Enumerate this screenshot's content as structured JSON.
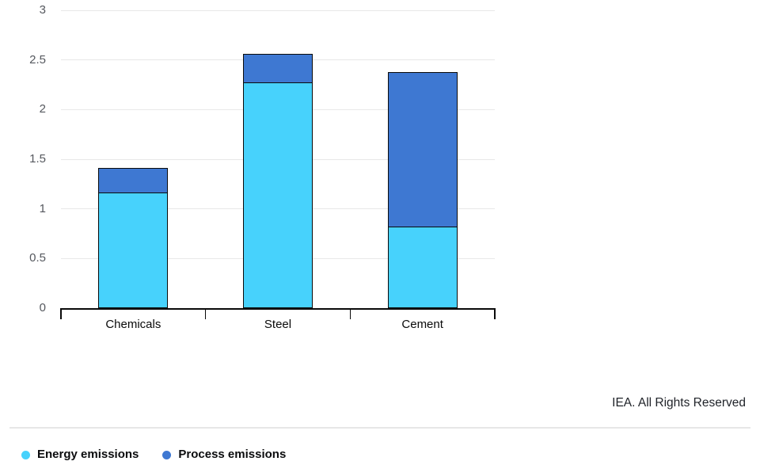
{
  "footer": {
    "credit": "IEA. All Rights Reserved"
  },
  "chart_data": {
    "type": "bar",
    "stacked": true,
    "categories": [
      "Chemicals",
      "Steel",
      "Cement"
    ],
    "series": [
      {
        "name": "Energy emissions",
        "color": "#47d2fc",
        "values": [
          1.17,
          2.28,
          0.82
        ]
      },
      {
        "name": "Process emissions",
        "color": "#3e78d2",
        "values": [
          0.24,
          0.28,
          1.56
        ]
      }
    ],
    "totals": [
      1.41,
      2.56,
      2.38
    ],
    "title": "",
    "xlabel": "",
    "ylabel": "",
    "ylim": [
      0,
      3
    ],
    "yticks": [
      0,
      0.5,
      1,
      1.5,
      2,
      2.5,
      3
    ],
    "grid": true,
    "bar_outline_color": "#0a0a0a",
    "legend_position": "bottom-left"
  }
}
